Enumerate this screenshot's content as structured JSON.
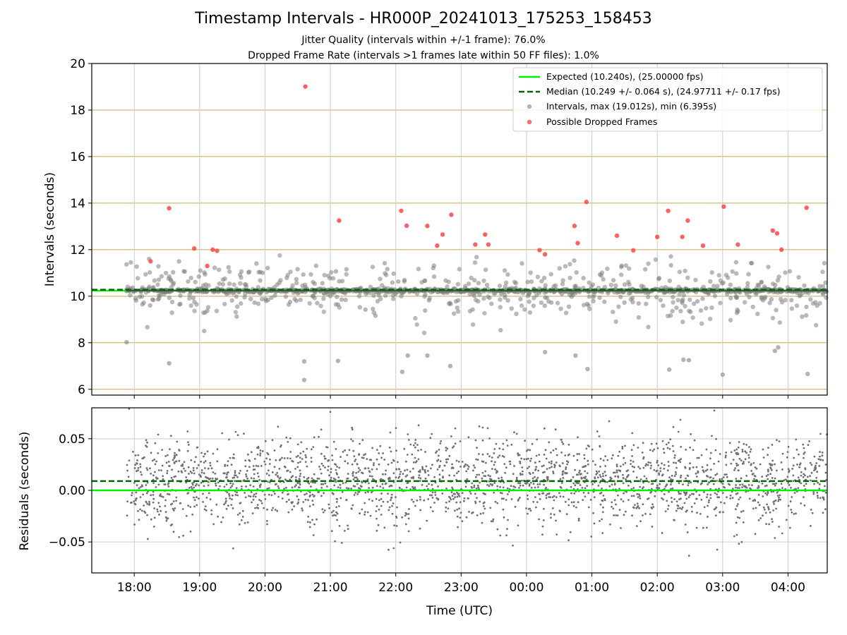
{
  "figure": {
    "title": "Timestamp Intervals - HR000P_20241013_175253_158453",
    "subtitle_1": "Jitter Quality (intervals within +/-1 frame): 76.0%",
    "subtitle_2": "Dropped Frame Rate (intervals >1 frames late within 50 FF files): 1.0%"
  },
  "colors": {
    "expected": "#00ee00",
    "median": "#006400",
    "intervals": "#808080",
    "dropped": "#ff3b3b",
    "frame_band": "#c8a948",
    "grid": "#cccccc"
  },
  "chart_data": [
    {
      "type": "scatter",
      "panel": "intervals",
      "ylabel": "Intervals (seconds)",
      "ylim": [
        5.75,
        20
      ],
      "yticks": [
        "6",
        "8",
        "10",
        "12",
        "14",
        "16",
        "18",
        "20"
      ],
      "xlim_hours": [
        17.35,
        28.6
      ],
      "grid": "vertical",
      "legend_position": "upper right",
      "legend": [
        "Expected (10.240s), (25.00000 fps)",
        "Median (10.249 +/- 0.064 s), (24.97711 +/- 0.17 fps)",
        "Intervals, max (19.012s), min (6.395s)",
        "Possible Dropped Frames"
      ],
      "expected_interval": 10.24,
      "median_interval": 10.249,
      "horizontal_bands": [
        6,
        8,
        10,
        12,
        14,
        16,
        18
      ],
      "dropped_frames": [
        {
          "t": "18:15",
          "y": 11.5
        },
        {
          "t": "18:32",
          "y": 13.78
        },
        {
          "t": "18:55",
          "y": 12.05
        },
        {
          "t": "19:07",
          "y": 11.3
        },
        {
          "t": "19:12",
          "y": 12.0
        },
        {
          "t": "19:16",
          "y": 11.95
        },
        {
          "t": "20:37",
          "y": 19.01
        },
        {
          "t": "21:08",
          "y": 13.25
        },
        {
          "t": "22:05",
          "y": 13.67
        },
        {
          "t": "22:10",
          "y": 13.03
        },
        {
          "t": "22:29",
          "y": 13.02
        },
        {
          "t": "22:38",
          "y": 12.17
        },
        {
          "t": "22:43",
          "y": 12.65
        },
        {
          "t": "22:51",
          "y": 13.5
        },
        {
          "t": "23:13",
          "y": 12.22
        },
        {
          "t": "23:22",
          "y": 12.65
        },
        {
          "t": "23:25",
          "y": 12.22
        },
        {
          "t": "00:12",
          "y": 11.98
        },
        {
          "t": "00:17",
          "y": 11.8
        },
        {
          "t": "00:44",
          "y": 13.02
        },
        {
          "t": "00:47",
          "y": 12.28
        },
        {
          "t": "00:55",
          "y": 14.05
        },
        {
          "t": "01:23",
          "y": 12.6
        },
        {
          "t": "01:38",
          "y": 11.97
        },
        {
          "t": "02:00",
          "y": 12.55
        },
        {
          "t": "02:10",
          "y": 13.67
        },
        {
          "t": "02:23",
          "y": 12.55
        },
        {
          "t": "02:28",
          "y": 13.25
        },
        {
          "t": "02:42",
          "y": 12.17
        },
        {
          "t": "03:01",
          "y": 13.85
        },
        {
          "t": "03:14",
          "y": 12.22
        },
        {
          "t": "03:46",
          "y": 12.82
        },
        {
          "t": "03:50",
          "y": 12.7
        },
        {
          "t": "03:54",
          "y": 12.0
        },
        {
          "t": "04:17",
          "y": 13.8
        }
      ],
      "interval_outliers": [
        {
          "t": "17:53",
          "y": 8.02
        },
        {
          "t": "18:32",
          "y": 7.12
        },
        {
          "t": "20:36",
          "y": 7.2
        },
        {
          "t": "20:36",
          "y": 6.4
        },
        {
          "t": "21:07",
          "y": 7.22
        },
        {
          "t": "22:06",
          "y": 6.75
        },
        {
          "t": "22:11",
          "y": 7.45
        },
        {
          "t": "22:29",
          "y": 7.45
        },
        {
          "t": "22:50",
          "y": 7.0
        },
        {
          "t": "00:17",
          "y": 7.6
        },
        {
          "t": "00:45",
          "y": 7.45
        },
        {
          "t": "00:56",
          "y": 6.87
        },
        {
          "t": "02:11",
          "y": 6.85
        },
        {
          "t": "02:24",
          "y": 7.27
        },
        {
          "t": "02:29",
          "y": 7.25
        },
        {
          "t": "03:00",
          "y": 6.63
        },
        {
          "t": "03:48",
          "y": 7.65
        },
        {
          "t": "03:51",
          "y": 7.8
        },
        {
          "t": "04:18",
          "y": 6.66
        }
      ]
    },
    {
      "type": "scatter",
      "panel": "residuals",
      "ylabel": "Residuals (seconds)",
      "xlabel": "Time (UTC)",
      "ylim": [
        -0.08,
        0.08
      ],
      "yticks": [
        "−0.05",
        "0.00",
        "0.05"
      ],
      "xticks": [
        "18:00",
        "19:00",
        "20:00",
        "21:00",
        "22:00",
        "23:00",
        "00:00",
        "01:00",
        "02:00",
        "03:00",
        "04:00"
      ],
      "grid": "both",
      "expected_residual": 0.0,
      "median_residual": 0.009
    }
  ]
}
